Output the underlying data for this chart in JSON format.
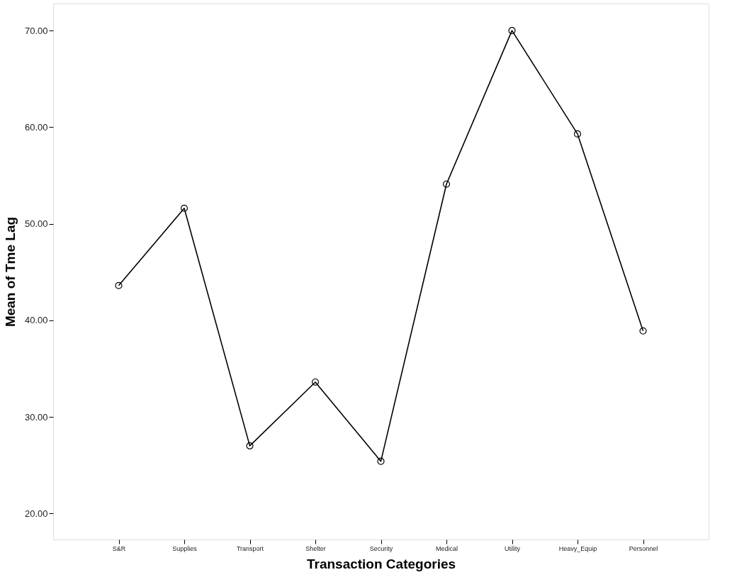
{
  "chart_data": {
    "type": "line",
    "xlabel": "Transaction Categories",
    "ylabel": "Mean of Tme Lag",
    "categories": [
      "S&R",
      "Supplies",
      "Transport",
      "Shelter",
      "Security",
      "Medical",
      "Utility",
      "Heavy_Equip",
      "Personnel"
    ],
    "series": [
      {
        "color": "#000000",
        "values": [
          43.6,
          51.6,
          27.0,
          33.6,
          25.4,
          54.1,
          70.0,
          59.3,
          38.9
        ]
      }
    ],
    "ylim": [
      17.3,
      72.8
    ],
    "yticks": [
      {
        "value": 20,
        "label": "20.00"
      },
      {
        "value": 30,
        "label": "30.00"
      },
      {
        "value": 40,
        "label": "40.00"
      },
      {
        "value": 50,
        "label": "50.00"
      },
      {
        "value": 60,
        "label": "60.00"
      },
      {
        "value": 70,
        "label": "70.00"
      }
    ],
    "grid": false,
    "legend": false,
    "marker": "circle",
    "line_style": "solid"
  }
}
